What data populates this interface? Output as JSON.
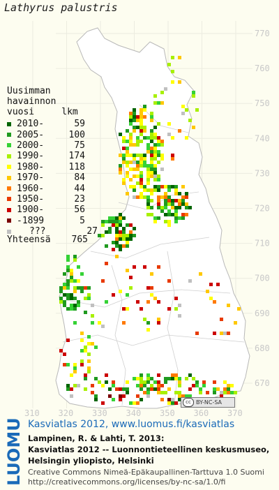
{
  "title": "Lathyrus palustris",
  "legend": {
    "heading": [
      "Uusimman",
      "havainnon",
      "vuosi     lkm"
    ],
    "items": [
      {
        "label": "2010-",
        "count": "59",
        "color": "#006400"
      },
      {
        "label": "2005-",
        "count": "100",
        "color": "#1f9a1f"
      },
      {
        "label": "2000-",
        "count": "75",
        "color": "#35d235"
      },
      {
        "label": "1990-",
        "count": "174",
        "color": "#a8f000"
      },
      {
        "label": "1980-",
        "count": "118",
        "color": "#ffff00"
      },
      {
        "label": "1970-",
        "count": "84",
        "color": "#ffc800"
      },
      {
        "label": "1960-",
        "count": "44",
        "color": "#ff7a00"
      },
      {
        "label": "1950-",
        "count": "23",
        "color": "#e83a00"
      },
      {
        "label": "1900-",
        "count": "56",
        "color": "#cc0000"
      },
      {
        "label": "-1899",
        "count": "5",
        "color": "#7a0000"
      },
      {
        "label": "???",
        "count": "27",
        "color": "#c0c0c0"
      }
    ],
    "total_label": "Yhteensä",
    "total_count": "765"
  },
  "axes": {
    "y_ticks": [
      "770",
      "760",
      "750",
      "740",
      "730",
      "720",
      "710",
      "700",
      "690",
      "680",
      "670"
    ],
    "x_ticks": [
      "310",
      "320",
      "330",
      "340",
      "350",
      "360",
      "370"
    ]
  },
  "license_badge": "BY-NC-SA",
  "luomus_logo": "LUOMUS",
  "footer": {
    "link": "Kasviatlas 2012, www.luomus.fi/kasviatlas",
    "citation": [
      "Lampinen, R. & Lahti, T. 2013:",
      "Kasviatlas 2012 -- Luonnontieteellinen keskusmuseo,",
      "Helsingin yliopisto, Helsinki"
    ],
    "license": [
      "Creative Commons Nimeä-Epäkaupallinen-Tarttuva 1.0 Suomi",
      "http://creativecommons.org/licenses/by-nc-sa/1.0/fi"
    ]
  },
  "colors": {
    "map_fill": "#ffffff",
    "map_bg": "#fdfdf0",
    "border": "#b8b8b8",
    "grid_label": "#c8c8c8",
    "link_blue": "#1a6ab8"
  }
}
